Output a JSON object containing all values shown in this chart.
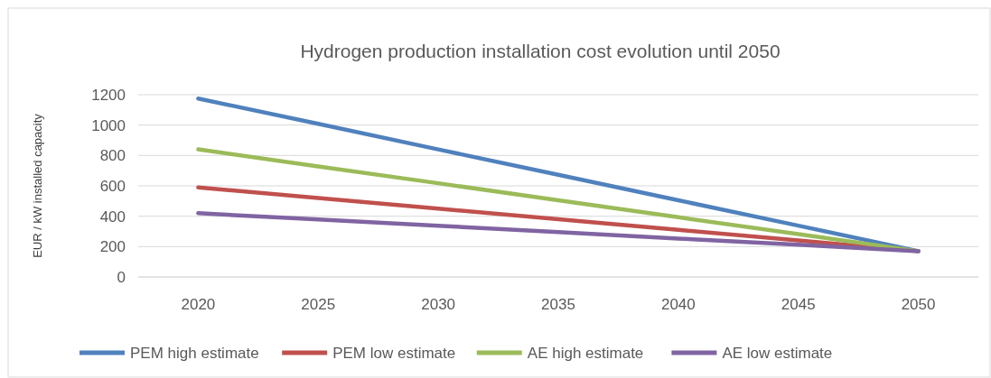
{
  "chart_data": {
    "type": "line",
    "title": "Hydrogen production installation cost evolution until 2050",
    "ylabel": "EUR / kW installed capacity",
    "categories": [
      "2020",
      "2025",
      "2030",
      "2035",
      "2040",
      "2045",
      "2050"
    ],
    "series": [
      {
        "name": "PEM high estimate",
        "color": "#4f81bd",
        "values": [
          1175,
          1008,
          840,
          673,
          505,
          338,
          170
        ]
      },
      {
        "name": "PEM low estimate",
        "color": "#c0504d",
        "values": [
          590,
          520,
          450,
          380,
          310,
          240,
          170
        ]
      },
      {
        "name": "AE high estimate",
        "color": "#9bbb59",
        "values": [
          840,
          728,
          617,
          505,
          393,
          282,
          170
        ]
      },
      {
        "name": "AE low estimate",
        "color": "#8064a2",
        "values": [
          420,
          378,
          337,
          295,
          253,
          212,
          170
        ]
      }
    ],
    "ylim": [
      0,
      1200
    ],
    "yticks": [
      0,
      200,
      400,
      600,
      800,
      1000,
      1200
    ],
    "grid": "y",
    "legend": "bottom",
    "marker": "none",
    "line_style": "solid"
  }
}
